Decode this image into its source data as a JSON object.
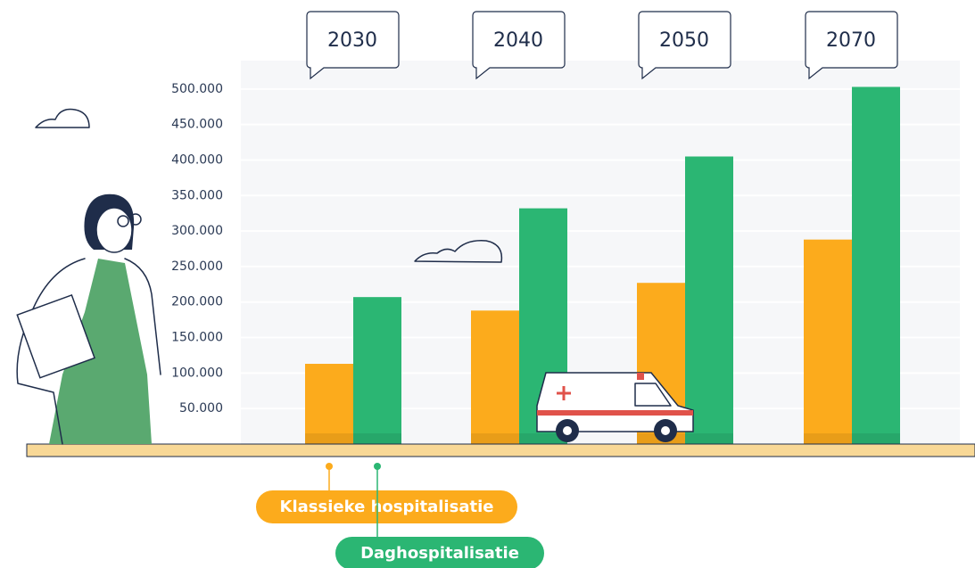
{
  "chart_data": {
    "type": "bar",
    "categories": [
      "2030",
      "2040",
      "2050",
      "2070"
    ],
    "series": [
      {
        "name": "Klassieke hospitalisatie",
        "color": "#fcab1c",
        "values": [
          113000,
          188000,
          227000,
          288000
        ]
      },
      {
        "name": "Daghospitalisatie",
        "color": "#2bb673",
        "values": [
          207000,
          332000,
          405000,
          503000
        ]
      }
    ],
    "ylim": [
      0,
      540000
    ],
    "yticks": [
      {
        "value": 50000,
        "label": "50.000"
      },
      {
        "value": 100000,
        "label": "100.000"
      },
      {
        "value": 150000,
        "label": "150.000"
      },
      {
        "value": 200000,
        "label": "200.000"
      },
      {
        "value": 250000,
        "label": "250.000"
      },
      {
        "value": 300000,
        "label": "300.000"
      },
      {
        "value": 350000,
        "label": "350.000"
      },
      {
        "value": 400000,
        "label": "400.000"
      },
      {
        "value": 450000,
        "label": "450.000"
      },
      {
        "value": 500000,
        "label": "500.000"
      }
    ],
    "grid": true
  }
}
